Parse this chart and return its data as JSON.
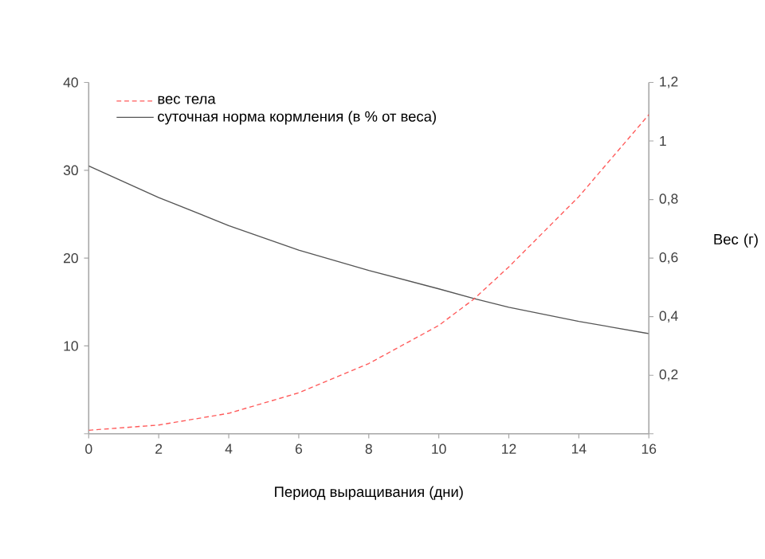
{
  "chart_data": {
    "type": "line",
    "xlabel": "Период выращивания (дни)",
    "y2label": "Вес (г)",
    "x": [
      0,
      2,
      4,
      6,
      8,
      10,
      11,
      12,
      14,
      16
    ],
    "series": [
      {
        "name": "вес тела",
        "color": "#ff5a5a",
        "line_style": "dashed",
        "axis": "y2",
        "values": [
          0.012,
          0.03,
          0.07,
          0.14,
          0.24,
          0.37,
          0.46,
          0.57,
          0.81,
          1.09
        ]
      },
      {
        "name": "суточная норма кормления (в % от веса)",
        "color": "#555555",
        "line_style": "solid",
        "values": [
          30.5,
          26.9,
          23.7,
          20.9,
          18.6,
          16.5,
          15.4,
          14.4,
          12.8,
          11.4
        ]
      }
    ],
    "xlim": [
      0,
      16
    ],
    "xticks": [
      0,
      2,
      4,
      6,
      8,
      10,
      12,
      14,
      16
    ],
    "ylim": [
      0,
      40
    ],
    "yticks": [
      {
        "value": 0,
        "label": null
      },
      10,
      20,
      30,
      40
    ],
    "y2lim": [
      0,
      1.2
    ],
    "y2ticks": [
      {
        "value": 0,
        "label": null
      },
      {
        "value": 0.2,
        "label": "0,2"
      },
      {
        "value": 0.4,
        "label": "0,4"
      },
      {
        "value": 0.6,
        "label": "0,6"
      },
      {
        "value": 0.8,
        "label": "0,8"
      },
      1,
      {
        "value": 1.2,
        "label": "1,2"
      }
    ],
    "grid": false,
    "legend": "top left"
  }
}
